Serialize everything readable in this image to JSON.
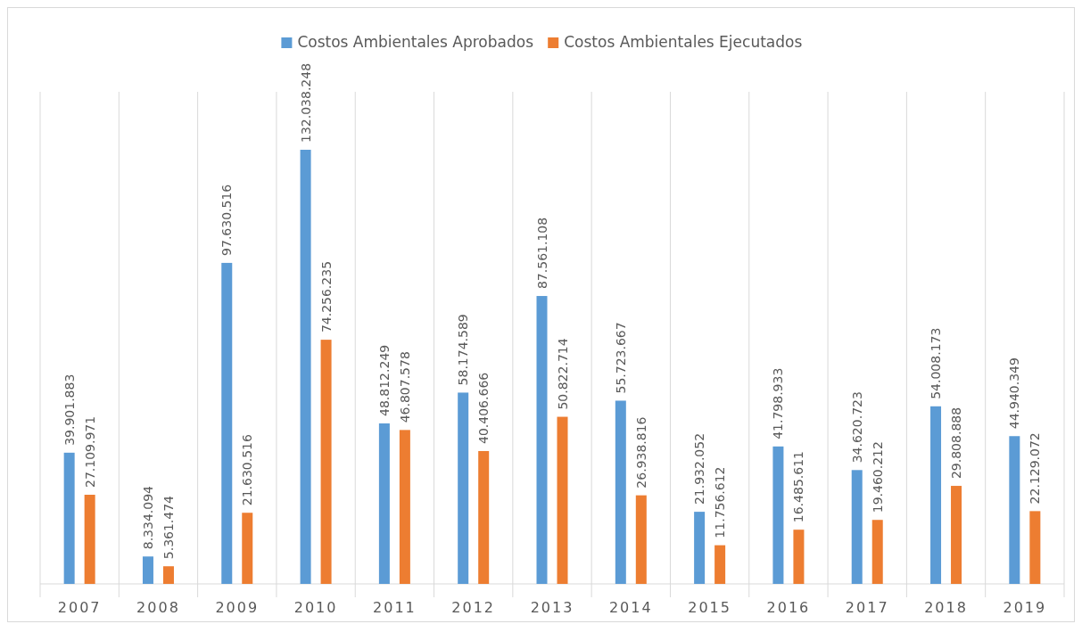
{
  "chart_data": {
    "type": "bar",
    "categories": [
      "2007",
      "2008",
      "2009",
      "2010",
      "2011",
      "2012",
      "2013",
      "2014",
      "2015",
      "2016",
      "2017",
      "2018",
      "2019"
    ],
    "series": [
      {
        "name": "Costos Ambientales Aprobados",
        "color": "#5b9bd5",
        "values": [
          39901883,
          8334094,
          97630516,
          132038248,
          48812249,
          58174589,
          87561108,
          55723667,
          21932052,
          41798933,
          34620723,
          54008173,
          44940349
        ],
        "value_labels": [
          "39.901.883",
          "8.334.094",
          "97.630.516",
          "132.038.248",
          "48.812.249",
          "58.174.589",
          "87.561.108",
          "55.723.667",
          "21.932.052",
          "41.798.933",
          "34.620.723",
          "54.008.173",
          "44.940.349"
        ]
      },
      {
        "name": "Costos Ambientales Ejecutados",
        "color": "#ed7d31",
        "values": [
          27109971,
          5361474,
          21630516,
          74256235,
          46807578,
          40406666,
          50822714,
          26938816,
          11756612,
          16485611,
          19460212,
          29808888,
          22129072
        ],
        "value_labels": [
          "27.109.971",
          "5.361.474",
          "21.630.516",
          "74.256.235",
          "46.807.578",
          "40.406.666",
          "50.822.714",
          "26.938.816",
          "11.756.612",
          "16.485.611",
          "19.460.212",
          "29.808.888",
          "22.129.072"
        ]
      }
    ],
    "grid": "x",
    "legend": "top"
  }
}
